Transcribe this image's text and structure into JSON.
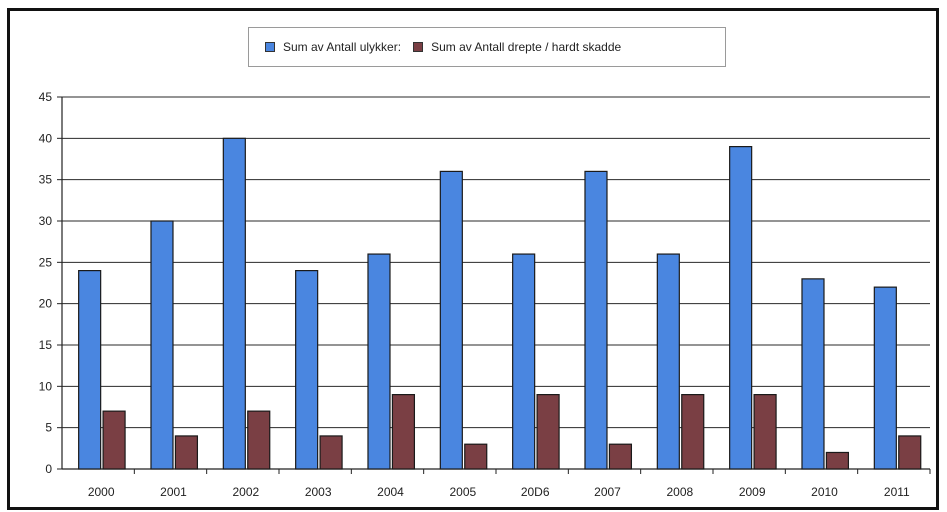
{
  "chart_data": {
    "type": "bar",
    "title": "",
    "xlabel": "",
    "ylabel": "",
    "categories": [
      "2000",
      "2001",
      "2002",
      "2003",
      "2004",
      "2005",
      "20D6",
      "2007",
      "2008",
      "2009",
      "2010",
      "2011"
    ],
    "series": [
      {
        "name": "Sum av Antall ulykker:",
        "color": "#4a86e0",
        "values": [
          24,
          30,
          40,
          24,
          26,
          36,
          26,
          36,
          26,
          39,
          23,
          22
        ]
      },
      {
        "name": "Sum av Antall drepte / hardt skadde",
        "color": "#7a3f44",
        "values": [
          7,
          4,
          7,
          4,
          9,
          3,
          9,
          3,
          9,
          9,
          2,
          4
        ]
      }
    ],
    "ylim": [
      0,
      45
    ],
    "yticks": [
      0,
      5,
      10,
      15,
      20,
      25,
      30,
      35,
      40,
      45
    ],
    "grid": true,
    "legend_position": "top-center"
  }
}
